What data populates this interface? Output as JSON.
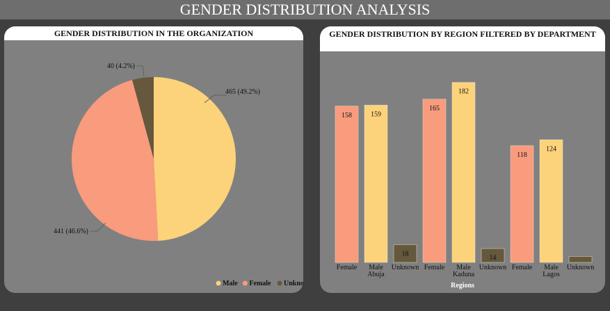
{
  "page": {
    "title": "GENDER DISTRIBUTION ANALYSIS"
  },
  "colors": {
    "male": "#fcd37a",
    "female": "#f99b7d",
    "unknown": "#65583c"
  },
  "chart_data": [
    {
      "type": "pie",
      "title": "GENDER DISTRIBUTION IN THE ORGANIZATION",
      "slices": [
        {
          "name": "Male",
          "value": 465,
          "label": "465 (49.2%)"
        },
        {
          "name": "Female",
          "value": 441,
          "label": "441 (46.6%)"
        },
        {
          "name": "Unknown",
          "value": 40,
          "label": "40 (4.2%)"
        }
      ],
      "legend": {
        "position": "bottom-right",
        "entries": [
          "Male",
          "Female",
          "Unknown"
        ]
      }
    },
    {
      "type": "bar",
      "title": "GENDER DISTRIBUTION BY REGION FILTERED BY DEPARTMENT",
      "xlabel": "Regions",
      "ylim": [
        0,
        200
      ],
      "groups": [
        {
          "region": "Abuja",
          "bars": [
            {
              "gender": "Female",
              "value": 158
            },
            {
              "gender": "Male",
              "value": 159
            },
            {
              "gender": "Unknown",
              "value": 18
            }
          ]
        },
        {
          "region": "Kaduna",
          "bars": [
            {
              "gender": "Female",
              "value": 165
            },
            {
              "gender": "Male",
              "value": 182
            },
            {
              "gender": "Unknown",
              "value": 14
            }
          ]
        },
        {
          "region": "Lagos",
          "bars": [
            {
              "gender": "Female",
              "value": 118
            },
            {
              "gender": "Male",
              "value": 124
            },
            {
              "gender": "Unknown",
              "value": 6
            }
          ]
        }
      ]
    }
  ]
}
